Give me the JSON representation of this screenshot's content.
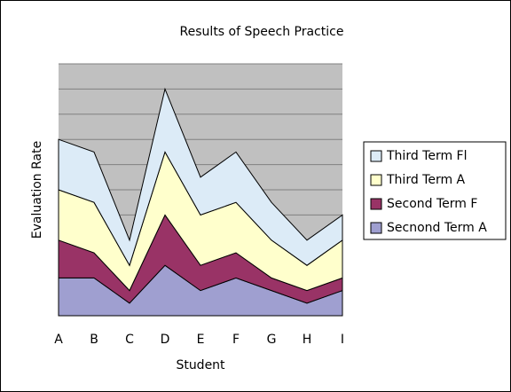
{
  "chart_data": {
    "type": "stacked_area",
    "title": "Results of Speech Practice",
    "x_label": "Student",
    "y_label": "Evaluation Rate",
    "categories": [
      "A",
      "B",
      "C",
      "D",
      "E",
      "F",
      "G",
      "H",
      "I"
    ],
    "series": [
      {
        "name": "Secnond Term A",
        "color": "#9f9fd0",
        "values": [
          1.5,
          1.5,
          0.5,
          2,
          1,
          1.5,
          1,
          0.5,
          1
        ]
      },
      {
        "name": "Second Term F",
        "color": "#993366",
        "values": [
          1.5,
          1,
          0.5,
          2,
          1,
          1,
          0.5,
          0.5,
          0.5
        ]
      },
      {
        "name": "Third Term A",
        "color": "#ffffcc",
        "values": [
          2,
          2,
          1,
          2.5,
          2,
          2,
          1.5,
          1,
          1.5
        ]
      },
      {
        "name": "Third Term Fl",
        "color": "#dcebf7",
        "values": [
          2,
          2,
          1,
          2.5,
          1.5,
          2,
          1.5,
          1,
          1
        ]
      }
    ],
    "ylim": [
      0,
      10
    ],
    "yticks": [
      0,
      1,
      2,
      3,
      4,
      5,
      6,
      7,
      8,
      9,
      10
    ],
    "y_tick_labels": false,
    "grid": true,
    "legend": "right",
    "plot_background": "#c0c0c0"
  }
}
